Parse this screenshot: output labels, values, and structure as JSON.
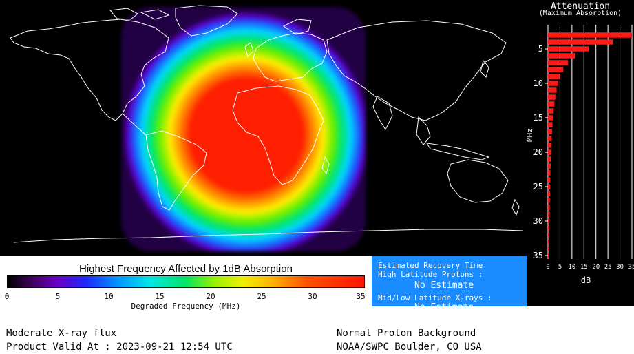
{
  "legend": {
    "title": "Highest Frequency Affected by 1dB Absorption",
    "ticks": [
      "0",
      "5",
      "10",
      "15",
      "20",
      "25",
      "30",
      "35"
    ],
    "xlabel": "Degraded Frequency (MHz)"
  },
  "recovery": {
    "heading": "Estimated Recovery Time",
    "high_lat_label": "High Latitude Protons :",
    "high_lat_value": "No Estimate",
    "mid_low_label": "Mid/Low Latitude X-rays :",
    "mid_low_value": "No Estimate"
  },
  "footer": {
    "flux": "Moderate X-ray flux",
    "valid": "Product Valid At : 2023-09-21 12:54 UTC",
    "proton": "Normal Proton Background",
    "source": "NOAA/SWPC Boulder, CO USA"
  },
  "colors": {
    "recovery_bg": "#1a8cff",
    "bar": "#ff1a1a",
    "absorption_center": "#ff1e00"
  },
  "chart_data": {
    "type": "bar",
    "orientation": "horizontal",
    "title": "Attenuation",
    "subtitle": "(Maximum Absorption)",
    "ylabel": "MHz",
    "xlabel": "dB",
    "xlim": [
      0,
      35
    ],
    "ylim": [
      2,
      35
    ],
    "y_ticks": [
      "5",
      "10",
      "15",
      "20",
      "25",
      "30",
      "35"
    ],
    "x_ticks": [
      "0",
      "5",
      "10",
      "15",
      "20",
      "25",
      "30",
      "35"
    ],
    "categories": [
      3,
      4,
      5,
      6,
      7,
      8,
      9,
      10,
      11,
      12,
      13,
      14,
      15,
      16,
      17,
      18,
      19,
      20,
      21,
      22,
      23,
      24,
      25,
      26,
      27,
      28,
      29,
      30,
      31,
      32,
      33,
      34,
      35
    ],
    "values": [
      35,
      27,
      17,
      11.5,
      8.3,
      6.4,
      5.1,
      4.2,
      3.6,
      3.1,
      2.7,
      2.4,
      2.1,
      1.9,
      1.7,
      1.55,
      1.4,
      1.3,
      1.2,
      1.1,
      1.02,
      0.95,
      0.9,
      0.84,
      0.8,
      0.75,
      0.72,
      0.68,
      0.65,
      0.62,
      0.6,
      0.57,
      0.55
    ]
  }
}
